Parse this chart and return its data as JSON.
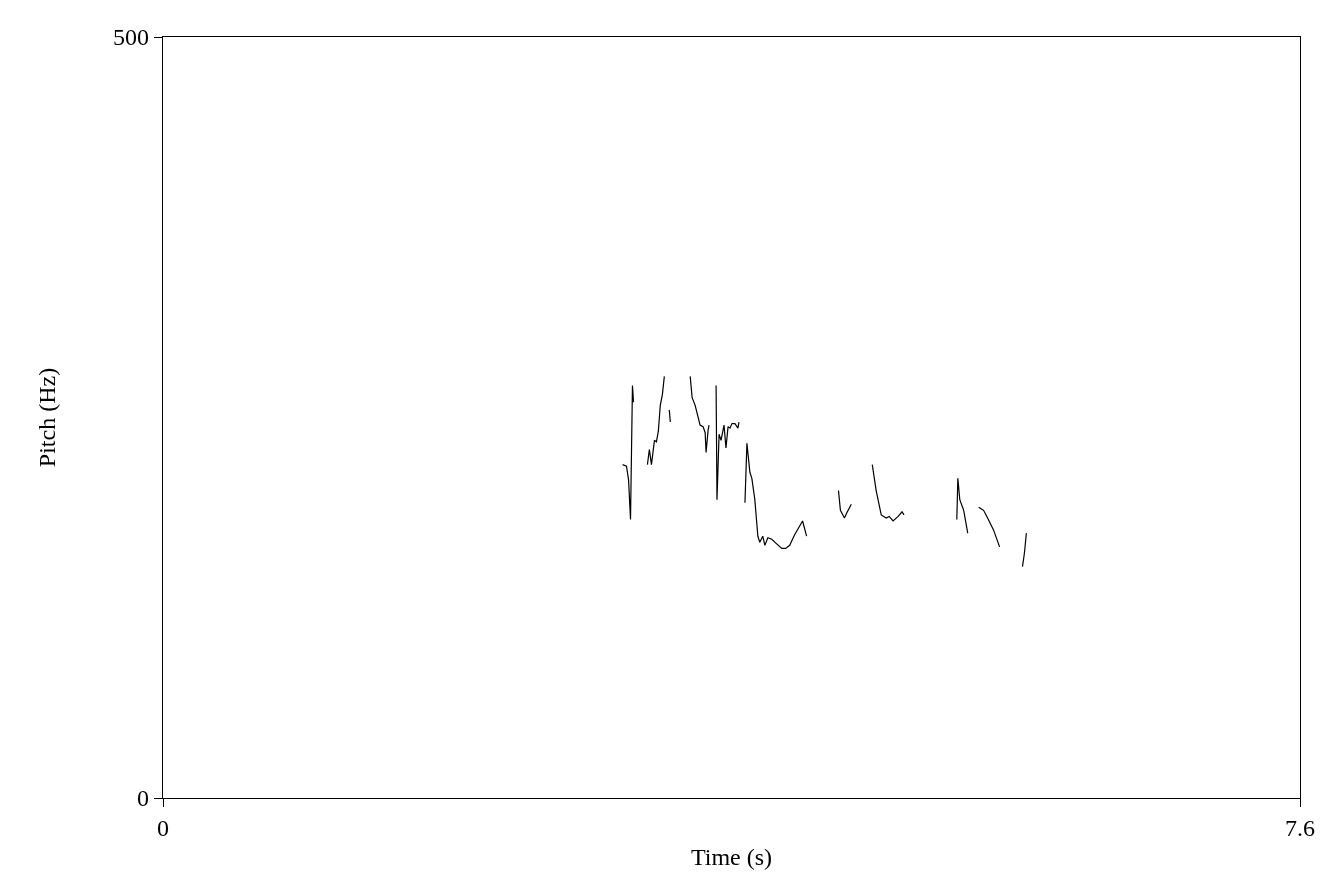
{
  "chart_data": {
    "type": "line",
    "xlabel": "Time (s)",
    "ylabel": "Pitch (Hz)",
    "xlim": [
      0,
      7.6
    ],
    "ylim": [
      0,
      500
    ],
    "xticks": [
      0,
      7.6
    ],
    "yticks": [
      0,
      500
    ],
    "marker": "none",
    "line_style": "solid",
    "series": [
      {
        "color": "#000000",
        "x": [
          3.072,
          3.098,
          3.112,
          3.125,
          3.138,
          3.145
        ],
        "values": [
          219,
          218,
          209,
          183,
          271,
          260
        ]
      },
      {
        "color": "#000000",
        "x": [
          3.238,
          3.251,
          3.265,
          3.285,
          3.298,
          3.311,
          3.324,
          3.338,
          3.351
        ],
        "values": [
          219,
          229,
          219,
          235,
          234,
          241,
          258,
          265,
          277
        ]
      },
      {
        "color": "#000000",
        "x": [
          3.384,
          3.391
        ],
        "values": [
          255,
          247
        ]
      },
      {
        "color": "#000000",
        "x": [
          3.524,
          3.537,
          3.557,
          3.59,
          3.61,
          3.624,
          3.63,
          3.644,
          3.65
        ],
        "values": [
          277,
          263,
          258,
          245,
          244,
          240,
          227,
          242,
          245
        ]
      },
      {
        "color": "#000000",
        "x": [
          3.697,
          3.703,
          3.717,
          3.73,
          3.75,
          3.763,
          3.777,
          3.79,
          3.803,
          3.823,
          3.843,
          3.85
        ],
        "values": [
          271,
          196,
          239,
          235,
          245,
          230,
          244,
          243,
          246,
          246,
          243,
          247
        ]
      },
      {
        "color": "#000000",
        "x": [
          3.89,
          3.903,
          3.923,
          3.936,
          3.956,
          3.976,
          3.989,
          4.009,
          4.023,
          4.043,
          4.069,
          4.102,
          4.136,
          4.162,
          4.189,
          4.222,
          4.275,
          4.302
        ],
        "values": [
          194,
          233,
          214,
          210,
          196,
          172,
          168,
          172,
          166,
          171,
          170,
          167,
          164,
          164,
          166,
          173,
          182,
          172
        ]
      },
      {
        "color": "#000000",
        "x": [
          4.515,
          4.528,
          4.555,
          4.574,
          4.601
        ],
        "values": [
          202,
          189,
          184,
          188,
          193
        ]
      },
      {
        "color": "#000000",
        "x": [
          4.741,
          4.767,
          4.801,
          4.834,
          4.854,
          4.88,
          4.914,
          4.94,
          4.953
        ],
        "values": [
          219,
          202,
          186,
          184,
          185,
          182,
          185,
          188,
          186
        ]
      },
      {
        "color": "#000000",
        "x": [
          5.306,
          5.313,
          5.326,
          5.352,
          5.379
        ],
        "values": [
          183,
          210,
          196,
          189,
          174
        ]
      },
      {
        "color": "#000000",
        "x": [
          5.452,
          5.485,
          5.512,
          5.552,
          5.592
        ],
        "values": [
          191,
          189,
          184,
          176,
          165
        ]
      },
      {
        "color": "#000000",
        "x": [
          5.745,
          5.758,
          5.771
        ],
        "values": [
          152,
          161,
          174
        ]
      }
    ]
  }
}
